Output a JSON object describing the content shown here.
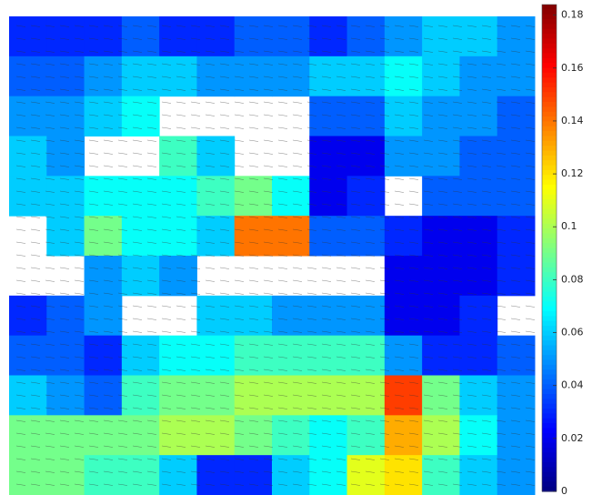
{
  "chart_data": {
    "type": "heatmap",
    "values": [
      [
        0.03,
        0.03,
        0.03,
        0.04,
        0.03,
        0.03,
        0.04,
        0.04,
        0.03,
        0.04,
        0.05,
        0.06,
        0.06,
        0.05
      ],
      [
        0.04,
        0.04,
        0.05,
        0.06,
        0.06,
        0.05,
        0.05,
        0.05,
        0.06,
        0.06,
        0.07,
        0.06,
        0.05,
        0.05
      ],
      [
        0.05,
        0.05,
        0.06,
        0.07,
        null,
        null,
        null,
        null,
        0.04,
        0.04,
        0.06,
        0.05,
        0.05,
        0.04
      ],
      [
        0.06,
        0.05,
        null,
        null,
        0.08,
        0.06,
        null,
        null,
        0.02,
        0.02,
        0.05,
        0.05,
        0.04,
        0.04
      ],
      [
        0.06,
        0.06,
        0.07,
        0.07,
        0.07,
        0.08,
        0.09,
        0.07,
        0.02,
        0.03,
        null,
        0.04,
        0.04,
        0.04
      ],
      [
        null,
        0.06,
        0.09,
        0.07,
        0.07,
        0.06,
        0.14,
        0.14,
        0.04,
        0.04,
        0.03,
        0.02,
        0.02,
        0.03
      ],
      [
        null,
        null,
        0.05,
        0.06,
        0.05,
        null,
        null,
        null,
        null,
        null,
        0.02,
        0.02,
        0.02,
        0.03
      ],
      [
        0.03,
        0.04,
        0.05,
        null,
        null,
        0.06,
        0.06,
        0.05,
        0.05,
        0.05,
        0.02,
        0.02,
        0.03,
        null
      ],
      [
        0.04,
        0.04,
        0.03,
        0.06,
        0.07,
        0.07,
        0.08,
        0.08,
        0.08,
        0.08,
        0.05,
        0.03,
        0.03,
        0.04
      ],
      [
        0.06,
        0.05,
        0.04,
        0.08,
        0.09,
        0.09,
        0.1,
        0.1,
        0.1,
        0.1,
        0.15,
        0.09,
        0.06,
        0.05
      ],
      [
        0.09,
        0.09,
        0.09,
        0.09,
        0.1,
        0.1,
        0.09,
        0.08,
        0.07,
        0.08,
        0.13,
        0.1,
        0.07,
        0.05
      ],
      [
        0.09,
        0.09,
        0.08,
        0.08,
        0.06,
        0.03,
        0.03,
        0.06,
        0.07,
        0.11,
        0.12,
        0.08,
        0.06,
        0.05
      ]
    ],
    "clim": [
      0,
      0.184
    ],
    "cticks": [
      0,
      0.02,
      0.04,
      0.06,
      0.08,
      0.1,
      0.12,
      0.14,
      0.16,
      0.18
    ]
  }
}
